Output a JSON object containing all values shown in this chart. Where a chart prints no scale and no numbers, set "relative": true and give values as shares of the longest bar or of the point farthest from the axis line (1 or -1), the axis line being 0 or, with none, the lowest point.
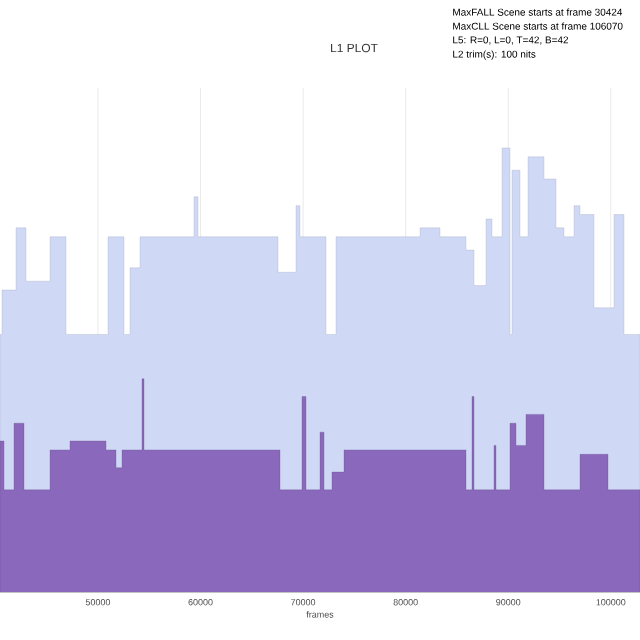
{
  "chart_data": {
    "type": "area",
    "title": "L1 PLOT",
    "xlabel": "frames",
    "relative": true,
    "annotations": [
      "MaxFALL Scene starts at frame 30424",
      "MaxCLL Scene starts at frame 106070",
      "L5: R=0, L=0, T=42, B=42",
      "L2 trim(s): 100 nits"
    ],
    "xlim": [
      40450,
      102850
    ],
    "xticks": [
      50000,
      60000,
      70000,
      80000,
      90000,
      100000
    ],
    "grid": "x",
    "series": [
      {
        "color": "#cfd8f5",
        "x": [
          40450,
          40645,
          42010,
          42985,
          45325,
          46885,
          50980,
          52540,
          53125,
          54100,
          59365,
          59755,
          67555,
          69310,
          69700,
          72235,
          73210,
          81400,
          83350,
          85885,
          86665,
          87835,
          88420,
          89395,
          90175,
          90370,
          91150,
          91930,
          93490,
          94660,
          95440,
          96415,
          97000,
          98365,
          100315,
          101290,
          102850
        ],
        "values": [
          0.58,
          0.68,
          0.82,
          0.7,
          0.8,
          0.58,
          0.8,
          0.58,
          0.73,
          0.8,
          0.89,
          0.8,
          0.72,
          0.87,
          0.8,
          0.58,
          0.8,
          0.82,
          0.8,
          0.77,
          0.69,
          0.84,
          0.8,
          1.0,
          0.58,
          0.95,
          0.8,
          0.98,
          0.93,
          0.82,
          0.8,
          0.87,
          0.85,
          0.64,
          0.85,
          0.58,
          0.58
        ]
      },
      {
        "color": "#8a68bb",
        "x": [
          40450,
          40840,
          41815,
          42790,
          45325,
          47275,
          50785,
          51760,
          52345,
          54295,
          54490,
          67750,
          69895,
          70285,
          71650,
          72040,
          72820,
          73990,
          85885,
          86470,
          86665,
          88615,
          88810,
          90175,
          90760,
          91735,
          93490,
          97000,
          99730,
          102850
        ],
        "values": [
          0.34,
          0.23,
          0.38,
          0.23,
          0.32,
          0.34,
          0.32,
          0.28,
          0.32,
          0.48,
          0.32,
          0.23,
          0.44,
          0.23,
          0.36,
          0.23,
          0.27,
          0.32,
          0.23,
          0.44,
          0.23,
          0.33,
          0.23,
          0.38,
          0.33,
          0.4,
          0.23,
          0.31,
          0.23,
          0.23
        ]
      }
    ]
  }
}
